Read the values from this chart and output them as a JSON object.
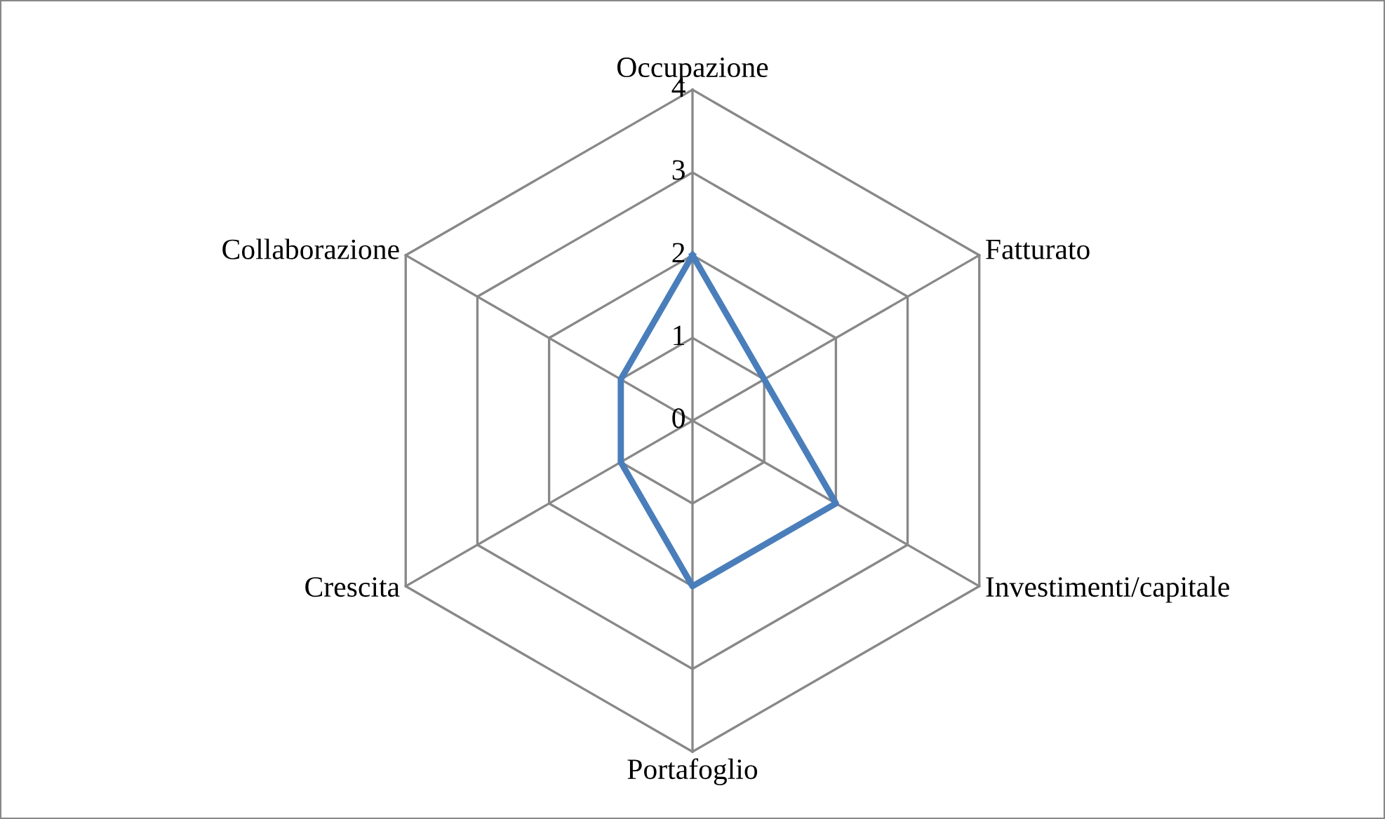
{
  "chart_data": {
    "type": "radar",
    "categories": [
      "Occupazione",
      "Fatturato",
      "Investimenti/capitale",
      "Portafoglio",
      "Crescita",
      "Collaborazione"
    ],
    "series": [
      {
        "color": "#4a7ebb",
        "values": [
          2,
          1,
          2,
          2,
          1,
          1
        ]
      }
    ],
    "ylim": [
      0,
      4
    ],
    "yticks": [
      0,
      1,
      2,
      3,
      4
    ],
    "grid": true,
    "marker": "none",
    "line_style": "solid"
  }
}
